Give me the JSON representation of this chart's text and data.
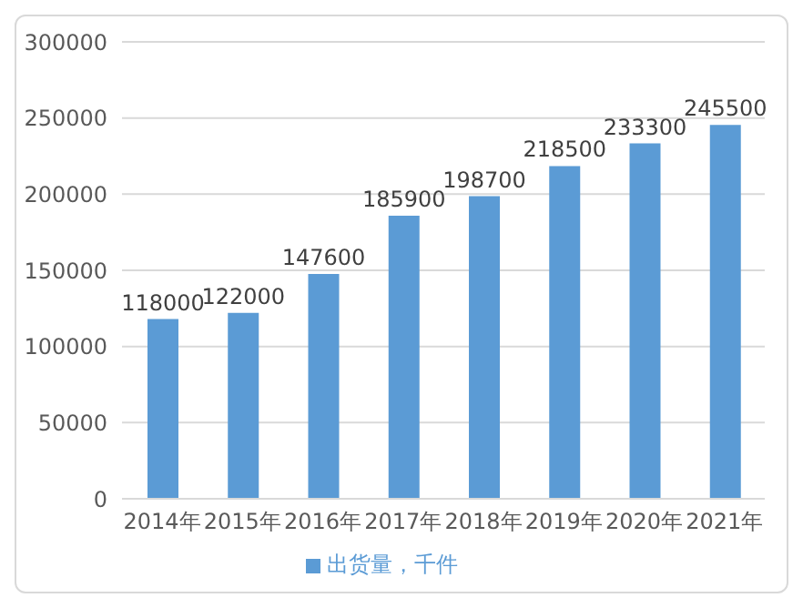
{
  "chart_data": {
    "type": "bar",
    "categories": [
      "2014年",
      "2015年",
      "2016年",
      "2017年",
      "2018年",
      "2019年",
      "2020年",
      "2021年"
    ],
    "series": [
      {
        "name": "出货量，千件",
        "color": "#5b9bd5",
        "values": [
          118000,
          122000,
          147600,
          185900,
          198700,
          218500,
          233300,
          245500
        ]
      }
    ],
    "ylim": [
      0,
      300000
    ],
    "yticks": [
      0,
      50000,
      100000,
      150000,
      200000,
      250000,
      300000
    ],
    "grid": "y",
    "legend": "bottom",
    "data_labels": true
  }
}
